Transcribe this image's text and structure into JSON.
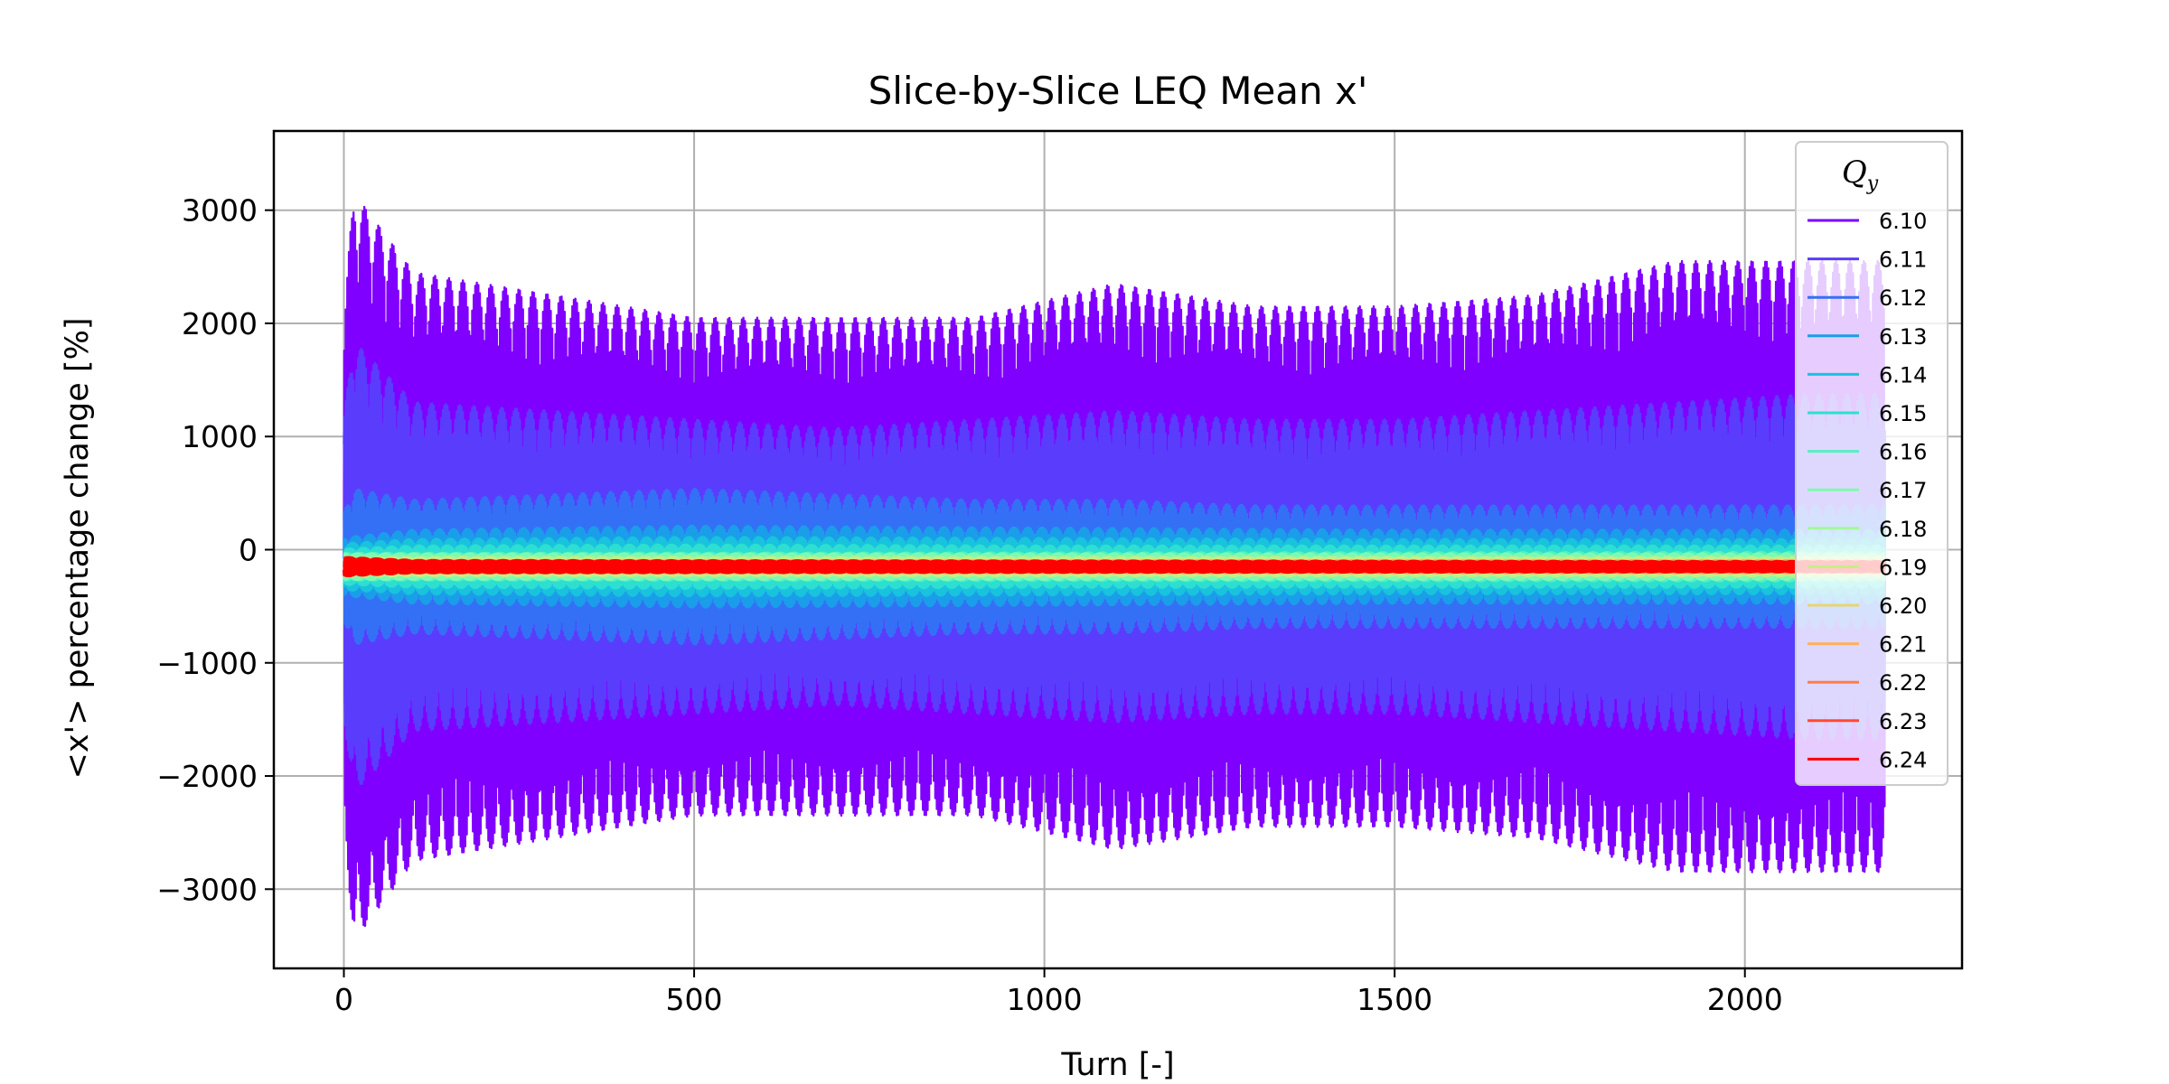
{
  "chart_data": {
    "type": "line",
    "title": "Slice-by-Slice LEQ Mean x'",
    "xlabel": "Turn [-]",
    "ylabel": "<x'> percentage change [%]",
    "xlim": [
      -100,
      2310
    ],
    "ylim": [
      -3700,
      3700
    ],
    "x_ticks": [
      0,
      500,
      1000,
      1500,
      2000
    ],
    "y_ticks": [
      -3000,
      -2000,
      -1000,
      0,
      1000,
      2000,
      3000
    ],
    "x_tick_labels": [
      "0",
      "500",
      "1000",
      "1500",
      "2000"
    ],
    "y_tick_labels": [
      "−3000",
      "−2000",
      "−1000",
      "0",
      "1000",
      "2000",
      "3000"
    ],
    "grid": true,
    "legend_position": "top-right",
    "legend_title": "Q",
    "legend_title_sub": "y",
    "x_range": [
      0,
      2200
    ],
    "oscillation_period_turns": 20,
    "series": [
      {
        "name": "6.10",
        "color": "#8000ff",
        "envelope": {
          "x": [
            0,
            15,
            100,
            300,
            500,
            700,
            900,
            1100,
            1300,
            1500,
            1700,
            1900,
            2100,
            2200
          ],
          "y": [
            2400,
            3300,
            2600,
            2400,
            2200,
            2200,
            2200,
            2500,
            2300,
            2300,
            2400,
            2700,
            2700,
            2700
          ]
        },
        "offset": -150
      },
      {
        "name": "6.11",
        "color": "#5a3cfd",
        "envelope": {
          "x": [
            0,
            15,
            100,
            300,
            500,
            700,
            900,
            1100,
            1300,
            1500,
            1700,
            1900,
            2100,
            2200
          ],
          "y": [
            1800,
            2600,
            1900,
            1800,
            1700,
            1600,
            1700,
            1800,
            1700,
            1700,
            1800,
            1900,
            2000,
            2000
          ]
        },
        "offset": -150
      },
      {
        "name": "6.12",
        "color": "#3470f5",
        "envelope": {
          "x": [
            0,
            15,
            100,
            300,
            500,
            700,
            900,
            1100,
            1300,
            1500,
            1700,
            1900,
            2100,
            2200
          ],
          "y": [
            500,
            700,
            600,
            650,
            700,
            650,
            600,
            600,
            550,
            550,
            550,
            550,
            550,
            550
          ]
        },
        "offset": -150
      },
      {
        "name": "6.13",
        "color": "#1a9ee9",
        "envelope": {
          "x": [
            0,
            100,
            500,
            1000,
            1500,
            2200
          ],
          "y": [
            300,
            380,
            420,
            400,
            380,
            380
          ]
        },
        "offset": -150
      },
      {
        "name": "6.14",
        "color": "#19c2dd",
        "envelope": {
          "x": [
            0,
            100,
            500,
            1000,
            1500,
            2200
          ],
          "y": [
            220,
            260,
            280,
            270,
            260,
            260
          ]
        },
        "offset": -150
      },
      {
        "name": "6.15",
        "color": "#2ddfd1",
        "envelope": {
          "x": [
            0,
            100,
            500,
            1000,
            1500,
            2200
          ],
          "y": [
            170,
            200,
            210,
            200,
            200,
            200
          ]
        },
        "offset": -150
      },
      {
        "name": "6.16",
        "color": "#55f0c2",
        "envelope": {
          "x": [
            0,
            2200
          ],
          "y": [
            140,
            150
          ]
        },
        "offset": -150
      },
      {
        "name": "6.17",
        "color": "#7efab0",
        "envelope": {
          "x": [
            0,
            2200
          ],
          "y": [
            120,
            120
          ]
        },
        "offset": -150
      },
      {
        "name": "6.18",
        "color": "#a4f89b",
        "envelope": {
          "x": [
            0,
            2200
          ],
          "y": [
            100,
            100
          ]
        },
        "offset": -150
      },
      {
        "name": "6.19",
        "color": "#c8ed86",
        "envelope": {
          "x": [
            0,
            2200
          ],
          "y": [
            85,
            85
          ]
        },
        "offset": -150
      },
      {
        "name": "6.20",
        "color": "#e8d570",
        "envelope": {
          "x": [
            0,
            2200
          ],
          "y": [
            70,
            70
          ]
        },
        "offset": -150
      },
      {
        "name": "6.21",
        "color": "#ffb05e",
        "envelope": {
          "x": [
            0,
            2200
          ],
          "y": [
            60,
            60
          ]
        },
        "offset": -150
      },
      {
        "name": "6.22",
        "color": "#ff7d47",
        "envelope": {
          "x": [
            0,
            2200
          ],
          "y": [
            55,
            55
          ]
        },
        "offset": -150
      },
      {
        "name": "6.23",
        "color": "#ff4a2e",
        "envelope": {
          "x": [
            0,
            2200
          ],
          "y": [
            50,
            50
          ]
        },
        "offset": -150
      },
      {
        "name": "6.24",
        "color": "#ff0000",
        "envelope": {
          "x": [
            0,
            100,
            2200
          ],
          "y": [
            90,
            60,
            50
          ]
        },
        "offset": -150
      }
    ]
  }
}
